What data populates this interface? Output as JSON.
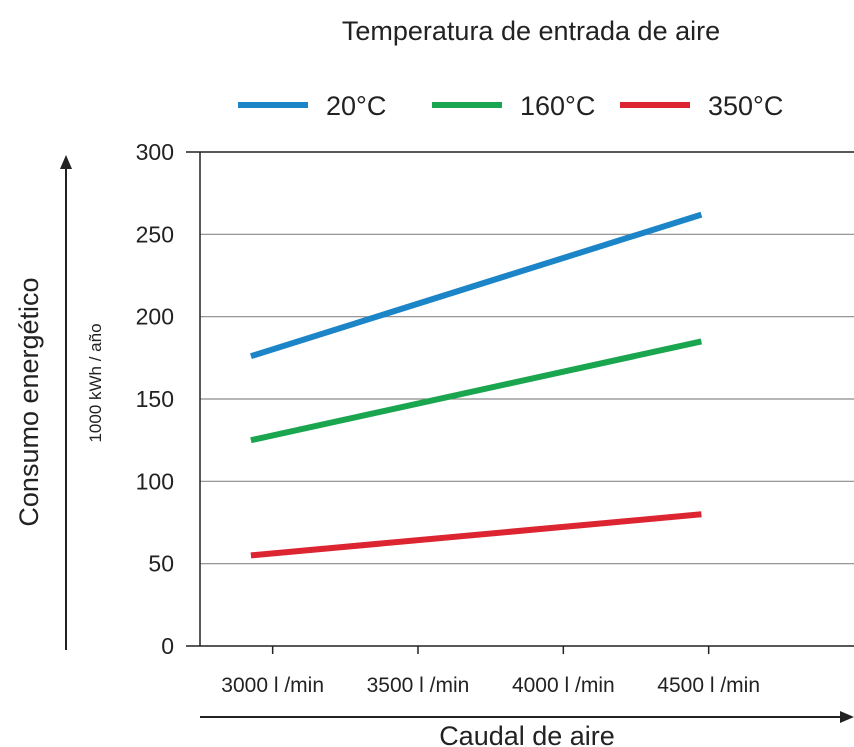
{
  "chart_data": {
    "type": "line",
    "title": "Temperatura de entrada de aire",
    "xlabel": "Caudal de aire",
    "ylabel": "Consumo energético",
    "yunit": "1000 kWh / año",
    "x_categories": [
      "3000 l /min",
      "3500 l /min",
      "4000 l /min",
      "4500 l /min"
    ],
    "x_values": [
      3000,
      3500,
      4000,
      4500
    ],
    "xlim": [
      2750,
      5000
    ],
    "ylim": [
      0,
      300
    ],
    "yticks": [
      0,
      50,
      100,
      150,
      200,
      250,
      300
    ],
    "grid": true,
    "legend_position": "top",
    "series": [
      {
        "name": "20°C",
        "color": "#1b85c8",
        "points": [
          [
            2925,
            176
          ],
          [
            4475,
            262
          ]
        ]
      },
      {
        "name": "160°C",
        "color": "#1aa54f",
        "points": [
          [
            2925,
            125
          ],
          [
            4475,
            185
          ]
        ]
      },
      {
        "name": "350°C",
        "color": "#dc2531",
        "points": [
          [
            2925,
            55
          ],
          [
            4475,
            80
          ]
        ]
      }
    ]
  }
}
